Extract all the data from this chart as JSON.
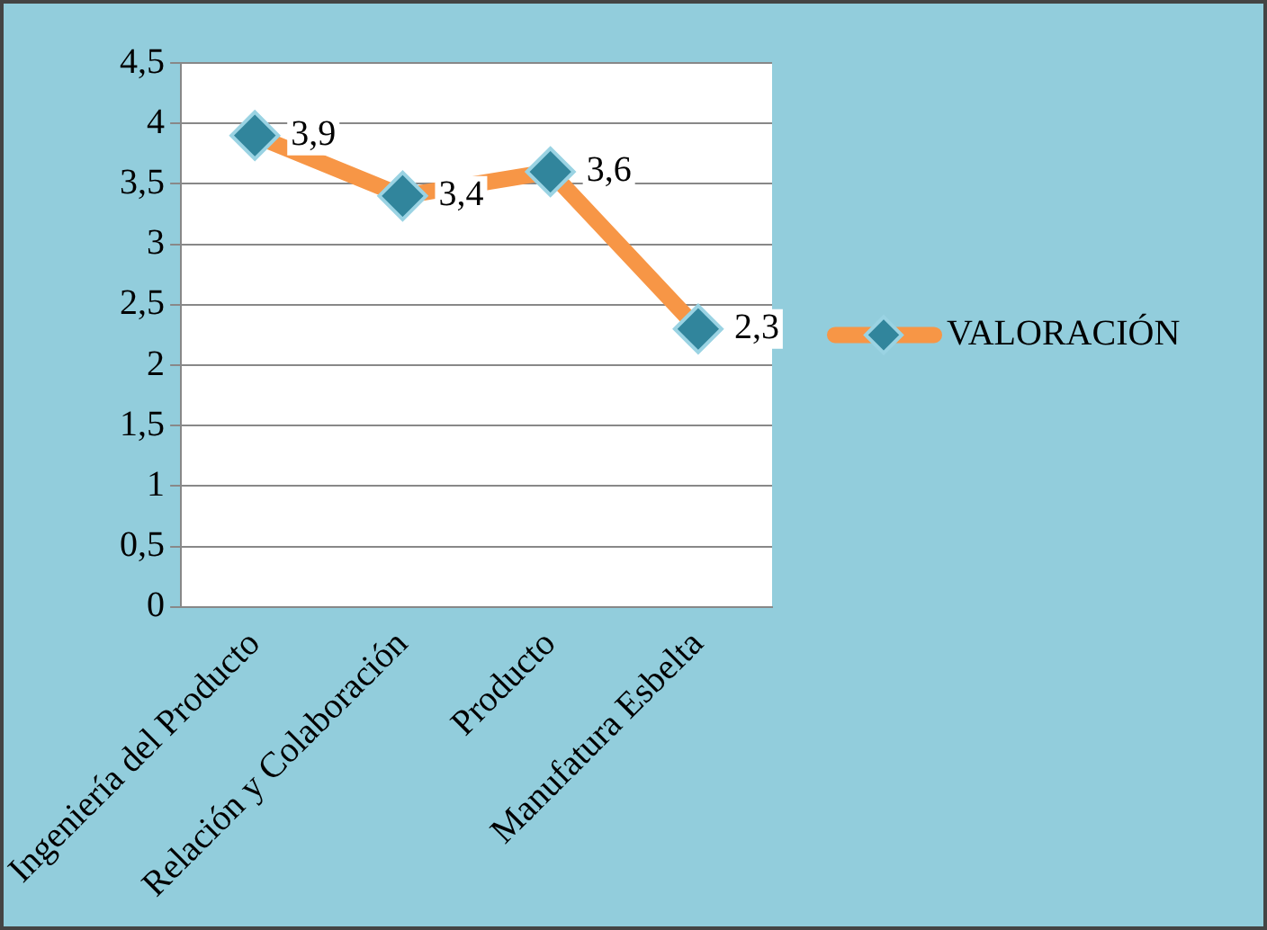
{
  "chart_data": {
    "type": "line",
    "categories": [
      "Ingeniería del Producto",
      "Relación y Colaboración",
      "Producto",
      "Manufatura Esbelta"
    ],
    "series": [
      {
        "name": "VALORACIÓN",
        "color": "#f79646",
        "values": [
          3.9,
          3.4,
          3.6,
          2.3
        ],
        "value_labels": [
          "3,9",
          "3,4",
          "3,6",
          "2,3"
        ]
      }
    ],
    "ylim": [
      0,
      4.5
    ],
    "yticks": [
      0,
      {
        "value": 0.5,
        "label": "0,5"
      },
      1,
      {
        "value": 1.5,
        "label": "1,5"
      },
      2,
      {
        "value": 2.5,
        "label": "2,5"
      },
      3,
      {
        "value": 3.5,
        "label": "3,5"
      },
      4,
      {
        "value": 4.5,
        "label": "4,5"
      }
    ],
    "grid": "y",
    "legend": "right",
    "marker": "diamond",
    "line_style": "solid"
  }
}
